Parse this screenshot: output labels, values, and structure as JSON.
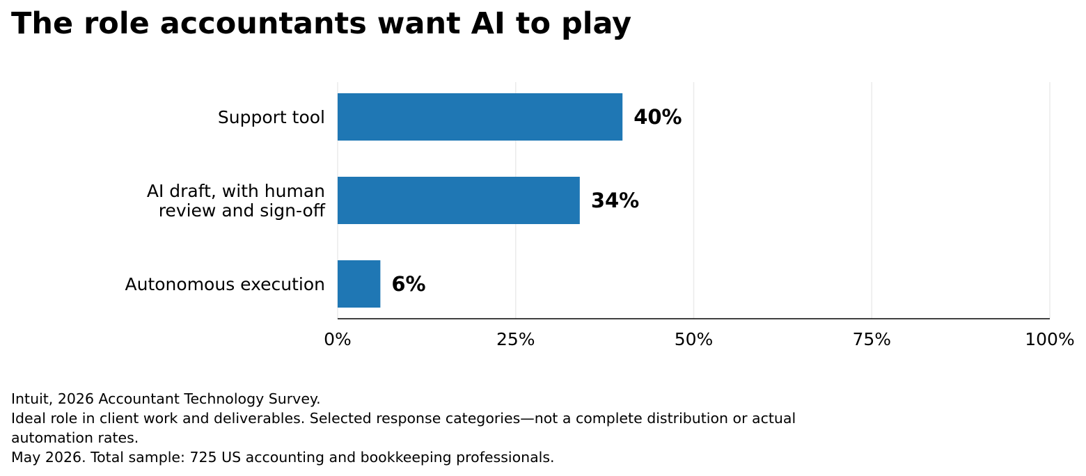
{
  "chart_data": {
    "type": "bar",
    "orientation": "horizontal",
    "title": "The role accountants want AI to play",
    "categories": [
      "Support tool",
      "AI draft, with human review and sign-off",
      "Autonomous execution"
    ],
    "category_label_lines": [
      [
        "Support tool"
      ],
      [
        "AI draft, with human",
        "review and sign-off"
      ],
      [
        "Autonomous execution"
      ]
    ],
    "values": [
      40,
      34,
      6
    ],
    "value_labels": [
      "40%",
      "34%",
      "6%"
    ],
    "xlim": [
      0,
      100
    ],
    "ticks": [
      0,
      25,
      50,
      75,
      100
    ],
    "tick_labels": [
      "0%",
      "25%",
      "50%",
      "75%",
      "100%"
    ],
    "xlabel": "",
    "ylabel": "",
    "grid": "vertical",
    "legend": "none",
    "bar_color": "#1f77b4"
  },
  "footnotes": {
    "source": "Intuit, 2026 Accountant Technology Survey.",
    "note_line1": "Ideal role in client work and deliverables. Selected response categories—not a complete distribution or actual",
    "note_line2": "automation rates.",
    "sample": "May 2026. Total sample: 725 US accounting and bookkeeping professionals."
  }
}
